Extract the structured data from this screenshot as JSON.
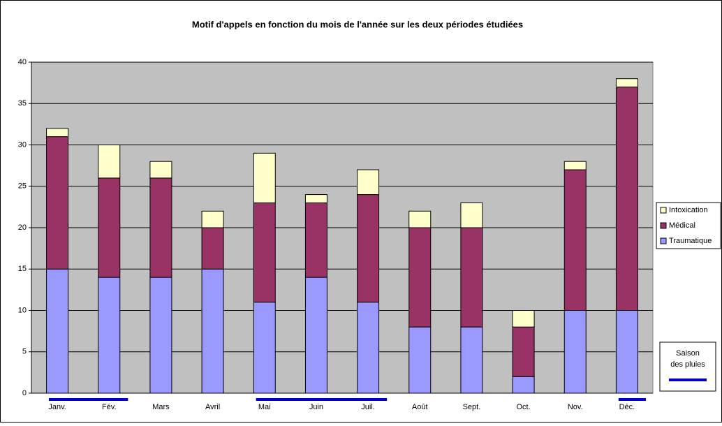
{
  "chart_data": {
    "type": "bar",
    "stacked": true,
    "title": "Motif d'appels en fonction du mois de l'année sur les deux périodes étudiées",
    "categories": [
      "Janv.",
      "Fév.",
      "Mars",
      "Avril",
      "Mai",
      "Juin",
      "Juil.",
      "Août",
      "Sept.",
      "Oct.",
      "Nov.",
      "Déc."
    ],
    "series": [
      {
        "name": "Traumatique",
        "color": "#9999ff",
        "values": [
          15,
          14,
          14,
          15,
          11,
          14,
          11,
          8,
          8,
          2,
          10,
          10
        ]
      },
      {
        "name": "Médical",
        "color": "#993366",
        "values": [
          16,
          12,
          12,
          5,
          12,
          9,
          13,
          12,
          12,
          6,
          17,
          27
        ]
      },
      {
        "name": "Intoxication",
        "color": "#ffffcc",
        "values": [
          1,
          4,
          2,
          2,
          6,
          1,
          3,
          2,
          3,
          2,
          1,
          1
        ]
      }
    ],
    "ylim": [
      0,
      40
    ],
    "yticks": [
      0,
      5,
      10,
      15,
      20,
      25,
      30,
      35,
      40
    ],
    "grid": true,
    "legend": "right",
    "rainy_season": {
      "label": [
        "Saison",
        "des pluies"
      ],
      "color": "#0000cc",
      "periods": [
        [
          0,
          1
        ],
        [
          4,
          6
        ],
        [
          11,
          11
        ]
      ]
    }
  }
}
